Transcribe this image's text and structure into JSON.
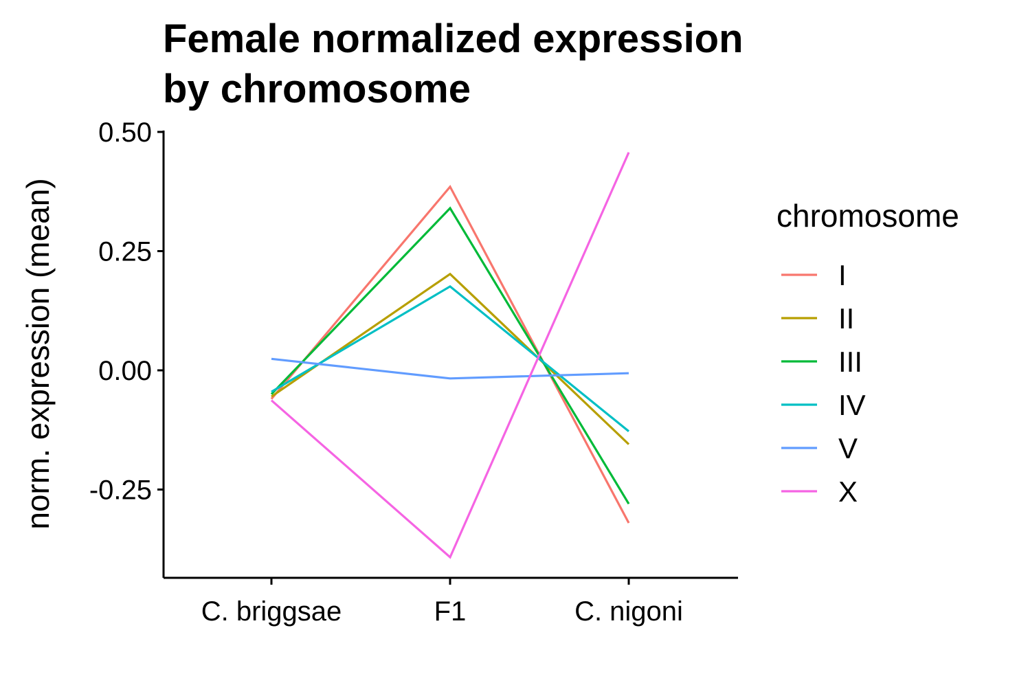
{
  "chart_data": {
    "type": "line",
    "title_lines": [
      "Female normalized expression",
      "by chromosome"
    ],
    "xlabel": "",
    "ylabel": "norm. expression (mean)",
    "categories": [
      "C. briggsae",
      "F1",
      "C. nigoni"
    ],
    "ylim": [
      -0.43,
      0.5
    ],
    "yticks": [
      0.5,
      0.25,
      0.0,
      -0.25
    ],
    "ytick_labels": [
      "0.50",
      "0.25",
      "0.00",
      "-0.25"
    ],
    "legend_title": "chromosome",
    "legend_position": "right",
    "grid": false,
    "series": [
      {
        "name": "I",
        "color": "#F8766D",
        "values": [
          -0.06,
          0.385,
          -0.32
        ]
      },
      {
        "name": "II",
        "color": "#B79F00",
        "values": [
          -0.055,
          0.202,
          -0.155
        ]
      },
      {
        "name": "III",
        "color": "#00BA38",
        "values": [
          -0.05,
          0.34,
          -0.28
        ]
      },
      {
        "name": "IV",
        "color": "#00BFC4",
        "values": [
          -0.045,
          0.176,
          -0.128
        ]
      },
      {
        "name": "V",
        "color": "#619CFF",
        "values": [
          0.024,
          -0.017,
          -0.006
        ]
      },
      {
        "name": "X",
        "color": "#F564E3",
        "values": [
          -0.063,
          -0.392,
          0.457
        ]
      }
    ]
  }
}
